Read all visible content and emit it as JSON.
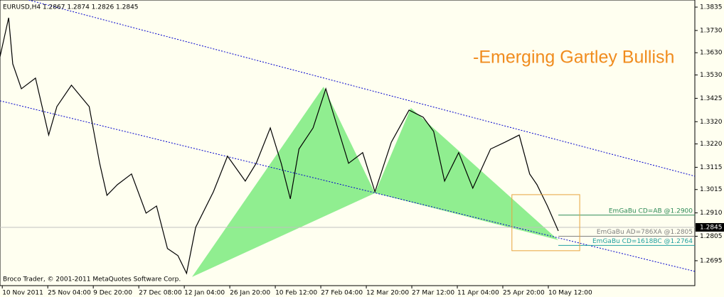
{
  "chart_data": {
    "type": "line",
    "header": "EURUSD,H4  1.2867 1.2874 1.2826 1.2845",
    "title": "-Emerging Gartley Bullish",
    "footer": "Broco Trader, © 2001-2011 MetaQuotes Software Corp.",
    "xlim": [
      -0.05,
      15.22
    ],
    "ylim": [
      1.2583,
      1.3867
    ],
    "xticks": [
      {
        "value": 0,
        "label": "10 Nov 2011"
      },
      {
        "value": 1,
        "label": "25 Nov 04:00"
      },
      {
        "value": 2,
        "label": "9 Dec 20:00"
      },
      {
        "value": 3,
        "label": "27 Dec 08:00"
      },
      {
        "value": 4,
        "label": "12 Jan 04:00"
      },
      {
        "value": 5,
        "label": "26 Jan 20:00"
      },
      {
        "value": 6,
        "label": "10 Feb 12:00"
      },
      {
        "value": 7,
        "label": "27 Feb 04:00"
      },
      {
        "value": 8,
        "label": "12 Mar 20:00"
      },
      {
        "value": 9,
        "label": "27 Mar 12:00"
      },
      {
        "value": 10,
        "label": "11 Apr 04:00"
      },
      {
        "value": 11,
        "label": "25 Apr 20:00"
      },
      {
        "value": 12,
        "label": "10 May 12:00"
      }
    ],
    "yticks": [
      1.3835,
      {
        "value": 1.373,
        "label": "1.3730"
      },
      {
        "value": 1.363,
        "label": "1.3630"
      },
      {
        "value": 1.353,
        "label": "1.3530"
      },
      1.3425,
      {
        "value": 1.332,
        "label": "1.3320"
      },
      {
        "value": 1.322,
        "label": "1.3220"
      },
      1.3115,
      1.3015,
      {
        "value": 1.291,
        "label": "1.2910"
      },
      1.2805,
      1.2695
    ],
    "current_price": 1.2845,
    "series": [
      {
        "name": "EURUSD",
        "color": "#000000",
        "x": [
          -0.05,
          0.14,
          0.23,
          0.42,
          0.73,
          1.02,
          1.2,
          1.52,
          1.91,
          2.14,
          2.3,
          2.53,
          2.84,
          3.16,
          3.39,
          3.63,
          3.86,
          4.05,
          4.25,
          4.64,
          4.95,
          5.34,
          5.58,
          5.89,
          6.13,
          6.33,
          6.52,
          6.83,
          7.11,
          7.3,
          7.61,
          7.92,
          8.19,
          8.55,
          8.94,
          9.25,
          9.48,
          9.72,
          10.03,
          10.34,
          10.73,
          11.05,
          11.36,
          11.59,
          11.75,
          11.98,
          12.22
        ],
        "values": [
          1.3612,
          1.3787,
          1.358,
          1.3468,
          1.3516,
          1.326,
          1.3388,
          1.3484,
          1.3388,
          1.3133,
          1.2989,
          1.3037,
          1.3085,
          1.2909,
          1.2941,
          1.275,
          1.2718,
          1.2638,
          1.2845,
          1.3005,
          1.3165,
          1.3053,
          1.3133,
          1.3292,
          1.3133,
          1.2973,
          1.3197,
          1.3292,
          1.3468,
          1.334,
          1.3133,
          1.3181,
          1.3005,
          1.3228,
          1.3372,
          1.334,
          1.3276,
          1.3053,
          1.3181,
          1.3021,
          1.3197,
          1.3228,
          1.326,
          1.3085,
          1.3037,
          1.2941,
          1.2829
        ]
      }
    ],
    "pattern": {
      "color": "#90ee90",
      "x": [
        4.17,
        7.06,
        8.19,
        8.98,
        12.22
      ],
      "values": [
        1.2622,
        1.3477,
        1.2999,
        1.3382,
        1.2788
      ]
    },
    "trendlines": [
      {
        "color": "#0000cd",
        "x": [
          0.58,
          15.22
        ],
        "values": [
          1.3867,
          1.3075
        ]
      },
      {
        "color": "#0000cd",
        "x": [
          -0.05,
          15.22
        ],
        "values": [
          1.3414,
          1.2647
        ]
      }
    ],
    "box": {
      "color": "#e8a33d",
      "x": [
        11.2,
        12.69
      ],
      "values": [
        1.2992,
        1.274
      ]
    },
    "levels": [
      {
        "label": "EmGaBu CD=AB    @1.2900",
        "value": 1.29,
        "color": "#2e8b57"
      },
      {
        "label": "EmGaBu AD=786XA  @1.2805",
        "value": 1.2805,
        "color": "#808080"
      },
      {
        "label": "EmGaBu CD=1618BC  @1.2764",
        "value": 1.2764,
        "color": "#20a0a0"
      }
    ]
  }
}
